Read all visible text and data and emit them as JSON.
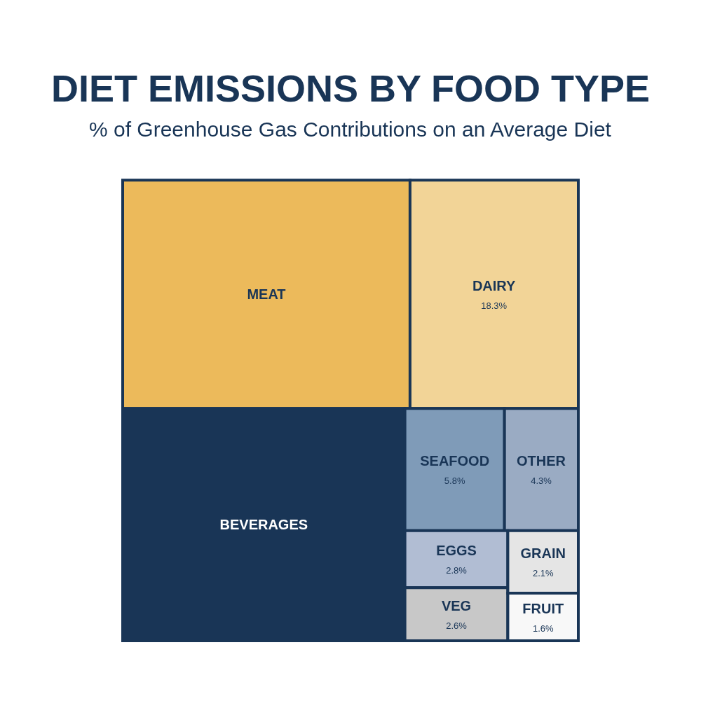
{
  "chart_data": {
    "type": "other",
    "title": "DIET EMISSIONS BY FOOD TYPE",
    "subtitle": "% of Greenhouse Gas Contributions on an Average Diet",
    "categories": [
      "MEAT",
      "DAIRY",
      "BEVERAGES",
      "SEAFOOD",
      "OTHER",
      "EGGS",
      "VEG",
      "GRAIN",
      "FRUIT"
    ],
    "values": [
      null,
      18.3,
      null,
      5.8,
      4.3,
      2.8,
      2.6,
      2.1,
      1.6
    ],
    "value_labels": [
      null,
      "18.3%",
      null,
      "5.8%",
      "4.3%",
      "2.8%",
      "2.6%",
      "2.1%",
      "1.6%"
    ],
    "colors": [
      "#ecba5b",
      "#f2d497",
      "#193556",
      "#7f9bb8",
      "#9aabc3",
      "#b1bdd3",
      "#c8c8c8",
      "#e5e5e5",
      "#f8f8f8"
    ]
  }
}
